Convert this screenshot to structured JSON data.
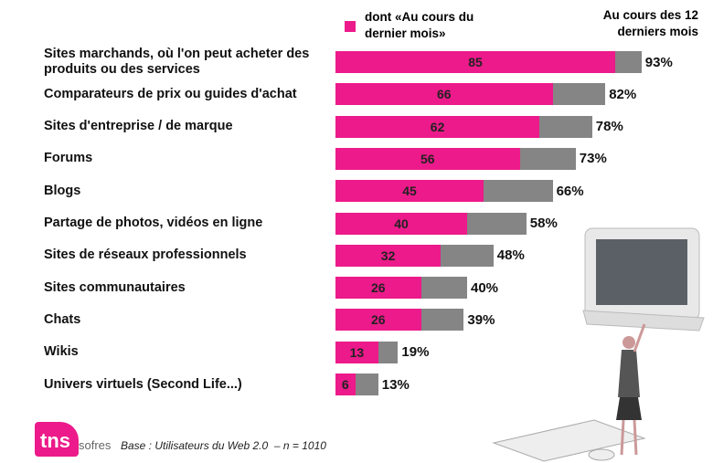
{
  "chart_data": {
    "type": "bar",
    "orientation": "horizontal",
    "overlap": true,
    "categories": [
      "Sites marchands, où l'on peut acheter des produits ou des services",
      "Comparateurs de prix ou guides d'achat",
      "Sites d'entreprise / de marque",
      "Forums",
      "Blogs",
      "Partage de photos, vidéos en ligne",
      "Sites de réseaux professionnels",
      "Sites communautaires",
      "Chats",
      "Wikis",
      "Univers virtuels (Second Life...)"
    ],
    "series": [
      {
        "name": "dont «Au cours du dernier mois»",
        "color": "#ec1a8a",
        "values": [
          85,
          66,
          62,
          56,
          45,
          40,
          32,
          26,
          26,
          13,
          6
        ]
      },
      {
        "name": "Au cours des 12 derniers mois",
        "color": "#858585",
        "values": [
          93,
          82,
          78,
          73,
          66,
          58,
          48,
          40,
          39,
          19,
          13
        ],
        "value_labels": [
          "93%",
          "82%",
          "78%",
          "73%",
          "66%",
          "58%",
          "48%",
          "40%",
          "39%",
          "19%",
          "13%"
        ]
      }
    ],
    "footnote": "Base : Utilisateurs du Web 2.0  – n = 1010",
    "logo": {
      "main": "tns",
      "sub": "sofres"
    }
  }
}
